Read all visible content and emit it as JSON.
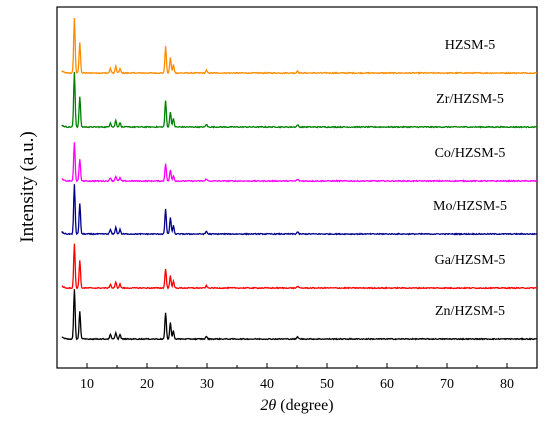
{
  "chart_data": {
    "type": "line",
    "title": "",
    "xlabel": {
      "symbol": "2θ",
      "unit": " (degree)"
    },
    "ylabel": "Intensity (a.u.)",
    "xlim": [
      5,
      85
    ],
    "xticks": [
      10,
      20,
      30,
      40,
      50,
      60,
      70,
      80
    ],
    "yticks_shown": false,
    "grid": false,
    "legend": "none (series labelled directly above each trace)",
    "stacking": "vertically offset traces",
    "series": [
      {
        "name": "HZSM-5",
        "color": "#ff8c00",
        "peaks": [
          {
            "x": 7.9,
            "intensity": 1.0
          },
          {
            "x": 8.8,
            "intensity": 0.55
          },
          {
            "x": 13.9,
            "intensity": 0.08
          },
          {
            "x": 14.8,
            "intensity": 0.12
          },
          {
            "x": 15.5,
            "intensity": 0.08
          },
          {
            "x": 23.1,
            "intensity": 0.48
          },
          {
            "x": 23.9,
            "intensity": 0.28
          },
          {
            "x": 24.4,
            "intensity": 0.15
          },
          {
            "x": 29.9,
            "intensity": 0.05
          },
          {
            "x": 45.1,
            "intensity": 0.04
          }
        ]
      },
      {
        "name": "Zr/HZSM-5",
        "color": "#008000",
        "peaks": [
          {
            "x": 7.9,
            "intensity": 1.0
          },
          {
            "x": 8.8,
            "intensity": 0.55
          },
          {
            "x": 13.9,
            "intensity": 0.08
          },
          {
            "x": 14.8,
            "intensity": 0.12
          },
          {
            "x": 15.5,
            "intensity": 0.08
          },
          {
            "x": 23.1,
            "intensity": 0.48
          },
          {
            "x": 23.9,
            "intensity": 0.28
          },
          {
            "x": 24.4,
            "intensity": 0.15
          },
          {
            "x": 29.9,
            "intensity": 0.05
          },
          {
            "x": 45.1,
            "intensity": 0.04
          }
        ]
      },
      {
        "name": "Co/HZSM-5",
        "color": "#ff00ff",
        "peaks": [
          {
            "x": 7.9,
            "intensity": 0.7
          },
          {
            "x": 8.8,
            "intensity": 0.4
          },
          {
            "x": 13.9,
            "intensity": 0.06
          },
          {
            "x": 14.8,
            "intensity": 0.09
          },
          {
            "x": 15.5,
            "intensity": 0.06
          },
          {
            "x": 23.1,
            "intensity": 0.32
          },
          {
            "x": 23.9,
            "intensity": 0.2
          },
          {
            "x": 24.4,
            "intensity": 0.1
          },
          {
            "x": 29.9,
            "intensity": 0.04
          },
          {
            "x": 45.1,
            "intensity": 0.03
          }
        ]
      },
      {
        "name": "Mo/HZSM-5",
        "color": "#00008b",
        "peaks": [
          {
            "x": 7.9,
            "intensity": 0.9
          },
          {
            "x": 8.8,
            "intensity": 0.55
          },
          {
            "x": 13.9,
            "intensity": 0.08
          },
          {
            "x": 14.8,
            "intensity": 0.12
          },
          {
            "x": 15.5,
            "intensity": 0.08
          },
          {
            "x": 23.1,
            "intensity": 0.45
          },
          {
            "x": 23.9,
            "intensity": 0.3
          },
          {
            "x": 24.4,
            "intensity": 0.15
          },
          {
            "x": 29.9,
            "intensity": 0.05
          },
          {
            "x": 45.1,
            "intensity": 0.04
          }
        ]
      },
      {
        "name": "Ga/HZSM-5",
        "color": "#ff0000",
        "peaks": [
          {
            "x": 7.9,
            "intensity": 0.8
          },
          {
            "x": 8.8,
            "intensity": 0.5
          },
          {
            "x": 13.9,
            "intensity": 0.07
          },
          {
            "x": 14.8,
            "intensity": 0.1
          },
          {
            "x": 15.5,
            "intensity": 0.07
          },
          {
            "x": 23.1,
            "intensity": 0.35
          },
          {
            "x": 23.9,
            "intensity": 0.22
          },
          {
            "x": 24.4,
            "intensity": 0.12
          },
          {
            "x": 29.9,
            "intensity": 0.04
          },
          {
            "x": 45.1,
            "intensity": 0.03
          }
        ]
      },
      {
        "name": "Zn/HZSM-5",
        "color": "#000000",
        "peaks": [
          {
            "x": 7.9,
            "intensity": 0.9
          },
          {
            "x": 8.8,
            "intensity": 0.5
          },
          {
            "x": 13.9,
            "intensity": 0.08
          },
          {
            "x": 14.8,
            "intensity": 0.12
          },
          {
            "x": 15.5,
            "intensity": 0.08
          },
          {
            "x": 23.1,
            "intensity": 0.48
          },
          {
            "x": 23.9,
            "intensity": 0.3
          },
          {
            "x": 24.4,
            "intensity": 0.15
          },
          {
            "x": 29.9,
            "intensity": 0.05
          },
          {
            "x": 45.1,
            "intensity": 0.04
          }
        ]
      }
    ]
  }
}
